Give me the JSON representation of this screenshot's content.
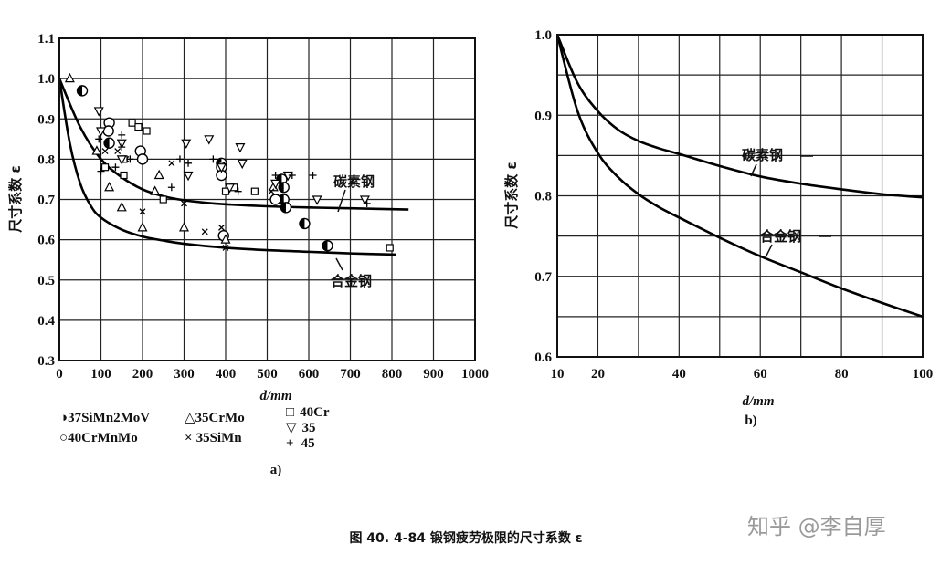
{
  "chart_data": [
    {
      "type": "scatter",
      "subplot_label": "a)",
      "xlabel": "d/mm",
      "ylabel": "尺寸系数 ε",
      "xlim": [
        0,
        1000
      ],
      "ylim": [
        0.3,
        1.1
      ],
      "x_ticks": [
        "0",
        "100",
        "200",
        "300",
        "400",
        "500",
        "600",
        "700",
        "800",
        "900",
        "1000"
      ],
      "y_ticks": [
        "0.3",
        "0.4",
        "0.5",
        "0.6",
        "0.7",
        "0.8",
        "0.9",
        "1.0",
        "1.1"
      ],
      "grid": true,
      "curves": [
        {
          "label": "碳素钢",
          "x": [
            0,
            50,
            100,
            150,
            200,
            250,
            300,
            350,
            400,
            500,
            600,
            700,
            840
          ],
          "y": [
            1.0,
            0.88,
            0.8,
            0.755,
            0.725,
            0.708,
            0.698,
            0.692,
            0.688,
            0.683,
            0.68,
            0.678,
            0.675
          ]
        },
        {
          "label": "合金钢",
          "x": [
            0,
            25,
            50,
            75,
            100,
            150,
            200,
            250,
            300,
            400,
            500,
            600,
            700,
            810
          ],
          "y": [
            1.0,
            0.84,
            0.74,
            0.685,
            0.655,
            0.625,
            0.608,
            0.598,
            0.59,
            0.58,
            0.574,
            0.57,
            0.566,
            0.563
          ]
        }
      ],
      "series": [
        {
          "name": "37SiMn2MoV",
          "marker": "half-circle",
          "x": [
            55,
            120,
            390,
            535,
            540,
            540,
            545,
            590,
            645
          ],
          "y": [
            0.97,
            0.84,
            0.79,
            0.75,
            0.73,
            0.7,
            0.68,
            0.64,
            0.585
          ]
        },
        {
          "name": "40CrMnMo",
          "marker": "circle",
          "x": [
            120,
            118,
            195,
            200,
            390,
            390,
            395,
            520
          ],
          "y": [
            0.89,
            0.87,
            0.82,
            0.8,
            0.78,
            0.76,
            0.61,
            0.7
          ]
        },
        {
          "name": "35CrMo",
          "marker": "triangle-up",
          "x": [
            25,
            90,
            120,
            150,
            200,
            230,
            240,
            300,
            400,
            515
          ],
          "y": [
            1.0,
            0.82,
            0.73,
            0.68,
            0.63,
            0.72,
            0.76,
            0.63,
            0.6,
            0.73
          ]
        },
        {
          "name": "35SiMn",
          "marker": "x",
          "x": [
            110,
            140,
            160,
            200,
            270,
            300,
            350,
            390,
            400,
            510
          ],
          "y": [
            0.82,
            0.82,
            0.8,
            0.67,
            0.79,
            0.69,
            0.62,
            0.63,
            0.58,
            0.72
          ]
        },
        {
          "name": "40Cr",
          "marker": "square",
          "x": [
            110,
            155,
            155,
            175,
            190,
            210,
            250,
            400,
            420,
            470,
            795
          ],
          "y": [
            0.78,
            0.76,
            0.8,
            0.89,
            0.88,
            0.87,
            0.7,
            0.72,
            0.73,
            0.72,
            0.58
          ]
        },
        {
          "name": "35",
          "marker": "triangle-down",
          "x": [
            95,
            100,
            150,
            150,
            305,
            310,
            360,
            390,
            410,
            440,
            435,
            520,
            550,
            620,
            735
          ],
          "y": [
            0.92,
            0.87,
            0.84,
            0.8,
            0.84,
            0.76,
            0.85,
            0.78,
            0.73,
            0.79,
            0.83,
            0.74,
            0.76,
            0.7,
            0.7
          ]
        },
        {
          "name": "45",
          "marker": "plus",
          "x": [
            95,
            100,
            135,
            150,
            150,
            170,
            270,
            290,
            310,
            370,
            430,
            520,
            560,
            610,
            740
          ],
          "y": [
            0.85,
            0.77,
            0.78,
            0.83,
            0.86,
            0.8,
            0.73,
            0.8,
            0.79,
            0.8,
            0.72,
            0.76,
            0.76,
            0.76,
            0.69
          ]
        }
      ]
    },
    {
      "type": "line",
      "subplot_label": "b)",
      "xlabel": "d/mm",
      "ylabel": "尺寸系数 ε",
      "xlim": [
        10,
        100
      ],
      "ylim": [
        0.6,
        1.0
      ],
      "x_ticks": [
        "10",
        "20",
        "40",
        "60",
        "80",
        "100"
      ],
      "y_ticks": [
        "0.6",
        "0.7",
        "0.8",
        "0.9",
        "1.0"
      ],
      "grid": true,
      "series": [
        {
          "name": "碳素钢",
          "x": [
            10,
            15,
            20,
            25,
            30,
            35,
            40,
            50,
            60,
            70,
            80,
            90,
            100
          ],
          "y": [
            1.0,
            0.94,
            0.905,
            0.882,
            0.868,
            0.859,
            0.852,
            0.837,
            0.824,
            0.815,
            0.808,
            0.802,
            0.798
          ]
        },
        {
          "name": "合金钢",
          "x": [
            10,
            15,
            20,
            25,
            30,
            35,
            40,
            50,
            60,
            70,
            80,
            90,
            100
          ],
          "y": [
            1.0,
            0.905,
            0.853,
            0.823,
            0.802,
            0.786,
            0.773,
            0.748,
            0.725,
            0.705,
            0.685,
            0.667,
            0.65
          ]
        }
      ]
    }
  ],
  "caption": "图 40. 4-84   锻钢疲劳极限的尺寸系数 ε",
  "watermark": "知乎 @李自厚",
  "legend": [
    {
      "symbol": "◑",
      "label": "37SiMn2MoV"
    },
    {
      "symbol": "△",
      "label": "35CrMo"
    },
    {
      "symbol": "□",
      "label": "40Cr"
    },
    {
      "symbol": "○",
      "label": "40CrMnMo"
    },
    {
      "symbol": "×",
      "label": "35SiMn"
    },
    {
      "symbol": "▽",
      "label": "35"
    },
    {
      "symbol": "+",
      "label": "45"
    }
  ]
}
